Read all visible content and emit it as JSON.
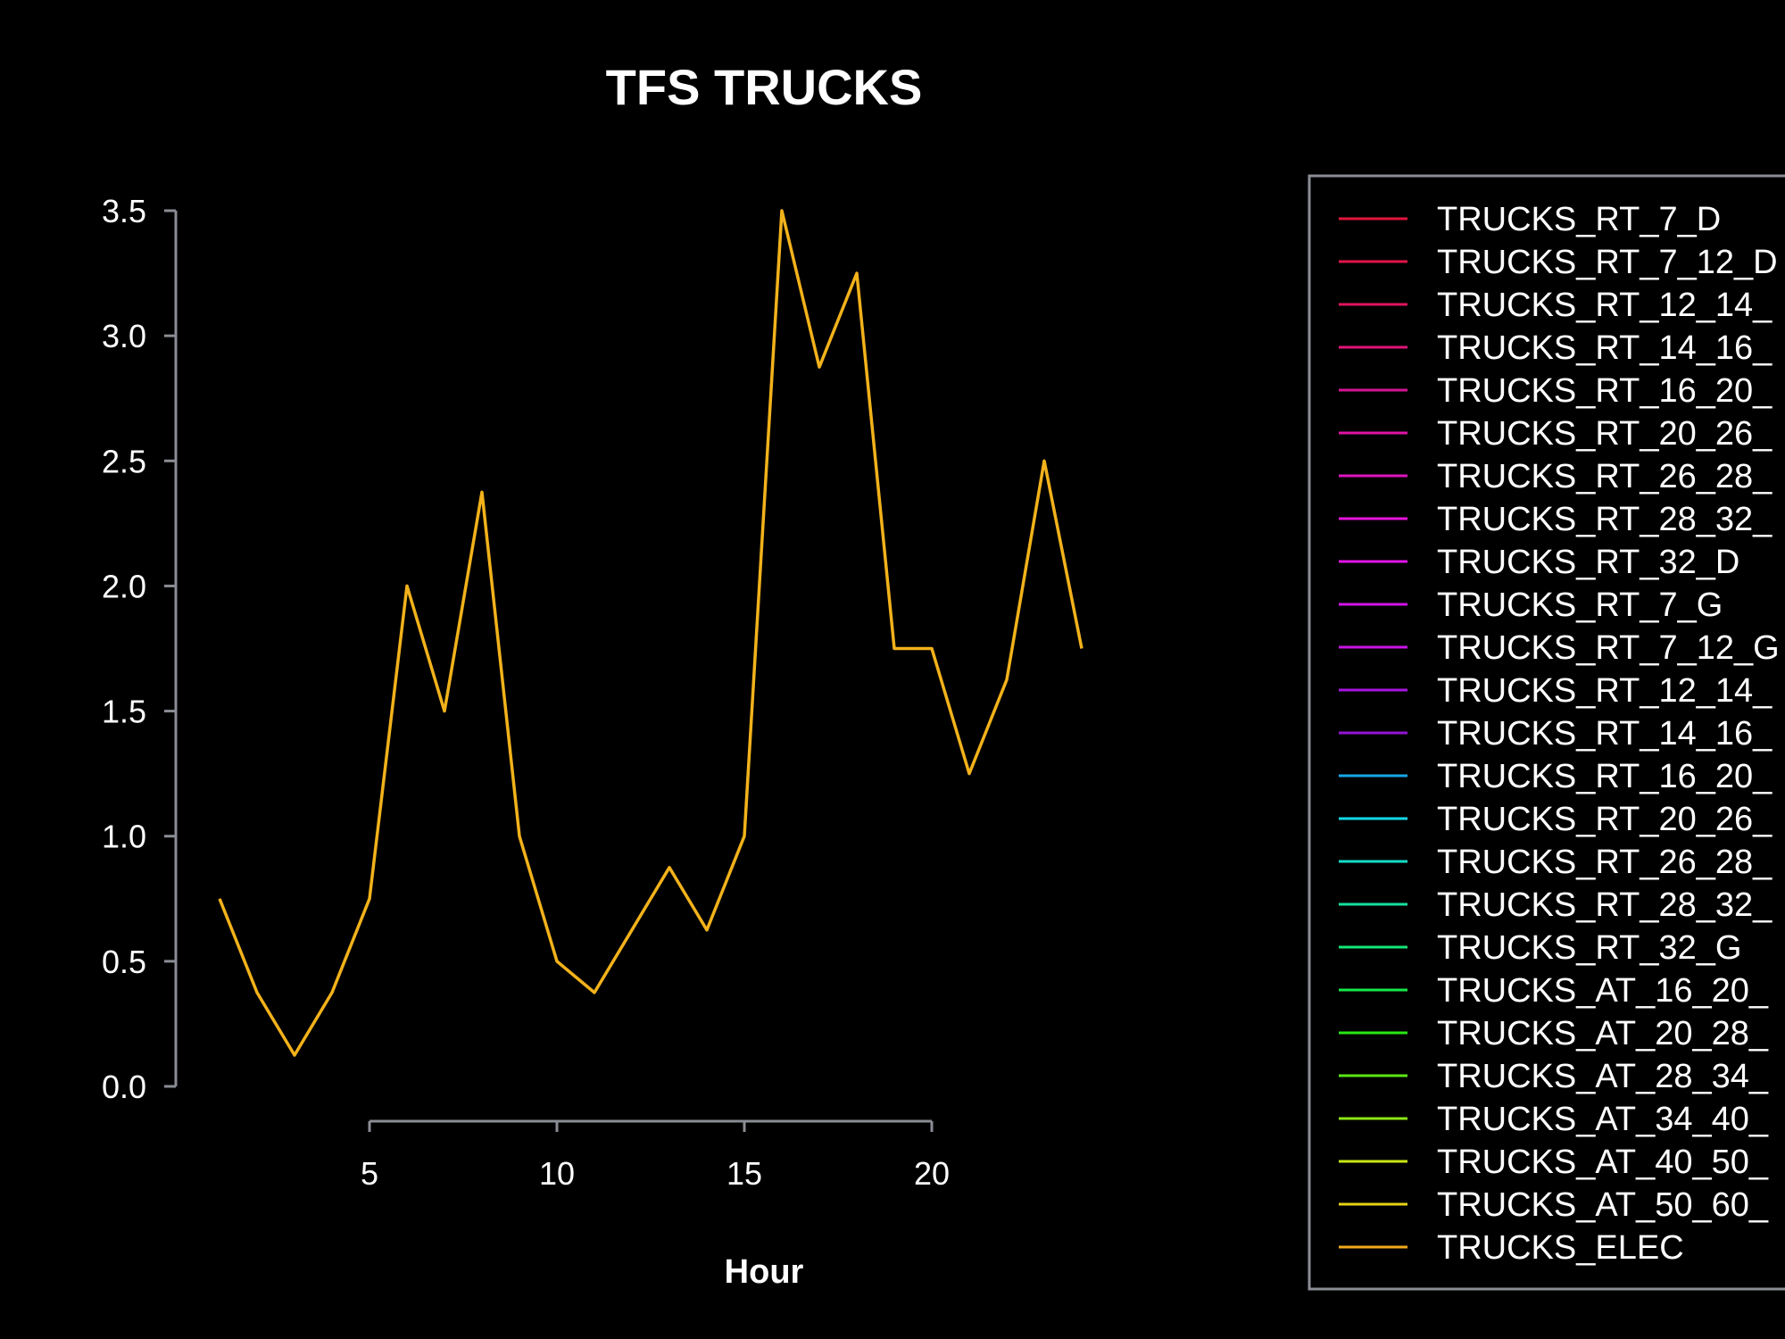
{
  "chart_data": {
    "type": "line",
    "title": "TFS TRUCKS",
    "xlabel": "Hour",
    "ylabel": "",
    "xlim": [
      1,
      25
    ],
    "ylim": [
      0,
      3.5
    ],
    "x_ticks": [
      5,
      10,
      15,
      20
    ],
    "x_tick_labels": [
      "5",
      "10",
      "15",
      "20"
    ],
    "y_ticks": [
      0,
      0.5,
      1.0,
      1.5,
      2.0,
      2.5,
      3.0,
      3.5
    ],
    "y_tick_labels": [
      "0.0",
      "0.5",
      "1.0",
      "1.5",
      "2.0",
      "2.5",
      "3.0",
      "3.5"
    ],
    "grid": false,
    "legend_position": "right (clipped)",
    "series": [
      {
        "name": "TRUCKS_ELEC",
        "color": "#f2b21b",
        "x": [
          1,
          2,
          3,
          4,
          5,
          6,
          7,
          8,
          9,
          10,
          11,
          12,
          13,
          14,
          15,
          16,
          17,
          18,
          19,
          20,
          21,
          22,
          23,
          24
        ],
        "values": [
          0.75,
          0.375,
          0.125,
          0.375,
          0.75,
          2.0,
          1.5,
          2.375,
          1.0,
          0.5,
          0.375,
          0.625,
          0.875,
          0.625,
          1.0,
          3.5,
          2.875,
          3.25,
          1.75,
          1.75,
          1.25,
          1.625,
          2.5,
          1.75
        ]
      }
    ],
    "legend": [
      {
        "label": "TRUCKS_RT_7_D",
        "color": "#e0143c"
      },
      {
        "label": "TRUCKS_RT_7_12_D",
        "color": "#e0144a"
      },
      {
        "label": "TRUCKS_RT_12_14_",
        "color": "#e0145e"
      },
      {
        "label": "TRUCKS_RT_14_16_",
        "color": "#e01478"
      },
      {
        "label": "TRUCKS_RT_16_20_",
        "color": "#d41492"
      },
      {
        "label": "TRUCKS_RT_20_26_",
        "color": "#e014a6"
      },
      {
        "label": "TRUCKS_RT_26_28_",
        "color": "#e014c2"
      },
      {
        "label": "TRUCKS_RT_28_32_",
        "color": "#e814dc"
      },
      {
        "label": "TRUCKS_RT_32_D",
        "color": "#e014e6"
      },
      {
        "label": "TRUCKS_RT_7_G",
        "color": "#d214e6"
      },
      {
        "label": "TRUCKS_RT_7_12_G",
        "color": "#c814e6"
      },
      {
        "label": "TRUCKS_RT_12_14_",
        "color": "#a814e0"
      },
      {
        "label": "TRUCKS_RT_14_16_",
        "color": "#9414d2"
      },
      {
        "label": "TRUCKS_RT_16_20_",
        "color": "#14a8e6"
      },
      {
        "label": "TRUCKS_RT_20_26_",
        "color": "#14d8e6"
      },
      {
        "label": "TRUCKS_RT_26_28_",
        "color": "#14dcc8"
      },
      {
        "label": "TRUCKS_RT_28_32_",
        "color": "#14e0a0"
      },
      {
        "label": "TRUCKS_RT_32_G",
        "color": "#14e678"
      },
      {
        "label": "TRUCKS_AT_16_20_",
        "color": "#14e64a"
      },
      {
        "label": "TRUCKS_AT_20_28_",
        "color": "#28e614"
      },
      {
        "label": "TRUCKS_AT_28_34_",
        "color": "#5ae614"
      },
      {
        "label": "TRUCKS_AT_34_40_",
        "color": "#8ce614"
      },
      {
        "label": "TRUCKS_AT_40_50_",
        "color": "#c8e614"
      },
      {
        "label": "TRUCKS_AT_50_60_",
        "color": "#e6d214"
      },
      {
        "label": "TRUCKS_ELEC",
        "color": "#f2a81b"
      }
    ]
  }
}
